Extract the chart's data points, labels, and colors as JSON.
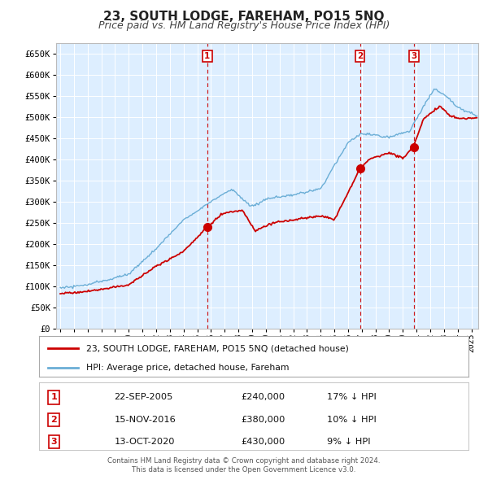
{
  "title": "23, SOUTH LODGE, FAREHAM, PO15 5NQ",
  "subtitle": "Price paid vs. HM Land Registry's House Price Index (HPI)",
  "title_fontsize": 11,
  "subtitle_fontsize": 9,
  "background_color": "#ffffff",
  "plot_bg_color": "#ddeeff",
  "grid_color": "#c8d8e8",
  "ylabel_ticks": [
    "£0",
    "£50K",
    "£100K",
    "£150K",
    "£200K",
    "£250K",
    "£300K",
    "£350K",
    "£400K",
    "£450K",
    "£500K",
    "£550K",
    "£600K",
    "£650K"
  ],
  "ytick_values": [
    0,
    50000,
    100000,
    150000,
    200000,
    250000,
    300000,
    350000,
    400000,
    450000,
    500000,
    550000,
    600000,
    650000
  ],
  "ylim": [
    0,
    675000
  ],
  "xlim_start": 1994.7,
  "xlim_end": 2025.5,
  "sale_color": "#cc0000",
  "hpi_color": "#6baed6",
  "sale_linewidth": 1.3,
  "hpi_linewidth": 1.0,
  "legend_sale_label": "23, SOUTH LODGE, FAREHAM, PO15 5NQ (detached house)",
  "legend_hpi_label": "HPI: Average price, detached house, Fareham",
  "purchases": [
    {
      "label": "1",
      "date_year": 2005.72,
      "price": 240000,
      "hpi_pct": "17%",
      "date_str": "22-SEP-2005",
      "price_str": "£240,000"
    },
    {
      "label": "2",
      "date_year": 2016.87,
      "price": 380000,
      "hpi_pct": "10%",
      "date_str": "15-NOV-2016",
      "price_str": "£380,000"
    },
    {
      "label": "3",
      "date_year": 2020.79,
      "price": 430000,
      "hpi_pct": "9%",
      "date_str": "13-OCT-2020",
      "price_str": "£430,000"
    }
  ],
  "footer_line1": "Contains HM Land Registry data © Crown copyright and database right 2024.",
  "footer_line2": "This data is licensed under the Open Government Licence v3.0.",
  "xtick_years": [
    1995,
    1996,
    1997,
    1998,
    1999,
    2000,
    2001,
    2002,
    2003,
    2004,
    2005,
    2006,
    2007,
    2008,
    2009,
    2010,
    2011,
    2012,
    2013,
    2014,
    2015,
    2016,
    2017,
    2018,
    2019,
    2020,
    2021,
    2022,
    2023,
    2024,
    2025
  ]
}
